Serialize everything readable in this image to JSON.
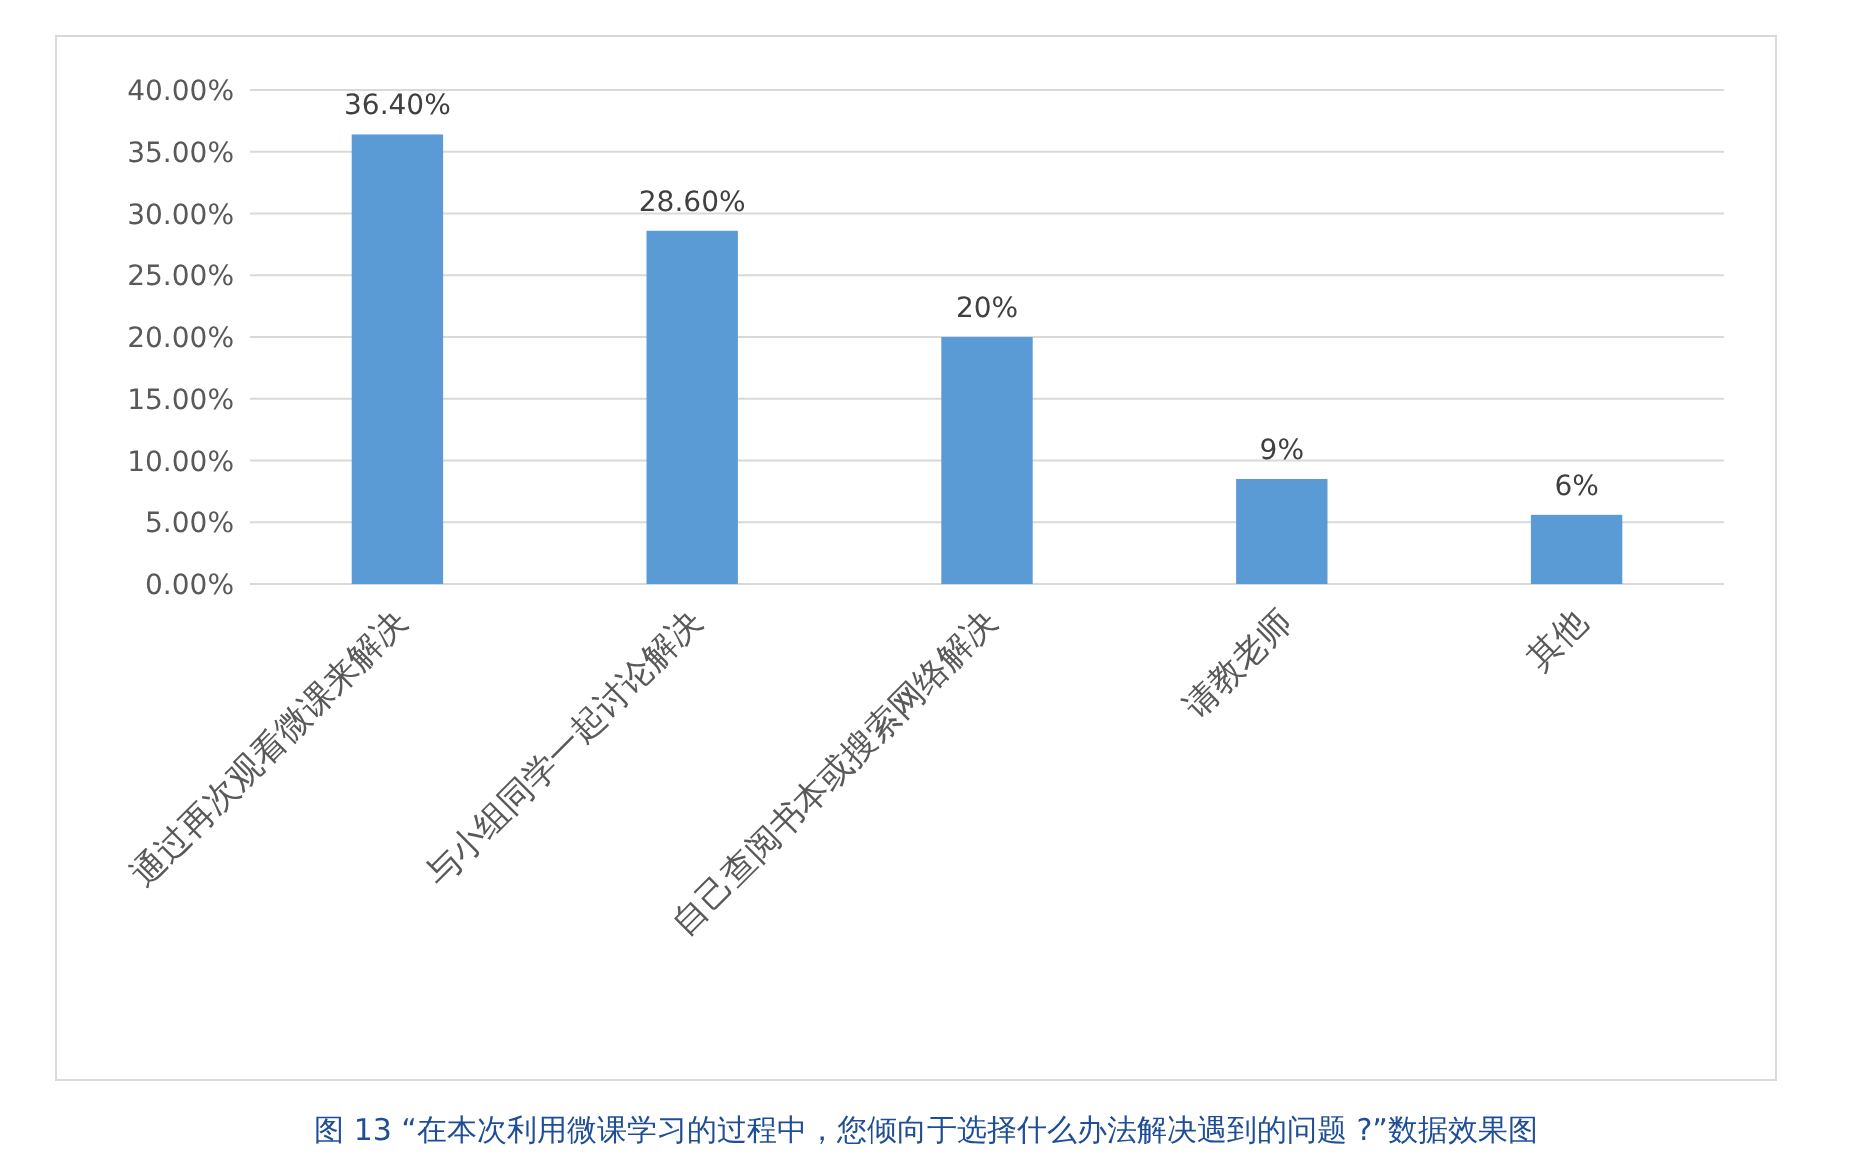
{
  "chart_data": {
    "type": "bar",
    "categories": [
      "通过再次观看微课来解决",
      "与小组同学一起讨论解决",
      "自己查阅书本或搜索网络解决",
      "请教老师",
      "其他"
    ],
    "values": [
      36.4,
      28.6,
      20,
      8.5,
      5.6
    ],
    "value_labels": [
      "36.40%",
      "28.60%",
      "20%",
      "9%",
      "6%"
    ],
    "color": "#5b9bd5",
    "ylim": [
      0,
      40
    ],
    "yticks": [
      {
        "value": 0,
        "label": "0.00%"
      },
      {
        "value": 5,
        "label": "5.00%"
      },
      {
        "value": 10,
        "label": "10.00%"
      },
      {
        "value": 15,
        "label": "15.00%"
      },
      {
        "value": 20,
        "label": "20.00%"
      },
      {
        "value": 25,
        "label": "25.00%"
      },
      {
        "value": 30,
        "label": "30.00%"
      },
      {
        "value": 35,
        "label": "35.00%"
      },
      {
        "value": 40,
        "label": "40.00%"
      }
    ],
    "grid": "y",
    "annotations": [
      "图 13 “在本次利用微课学习的过程中，您倾向于选择什么办法解决遇到的问题 ?”数据效果图"
    ]
  }
}
